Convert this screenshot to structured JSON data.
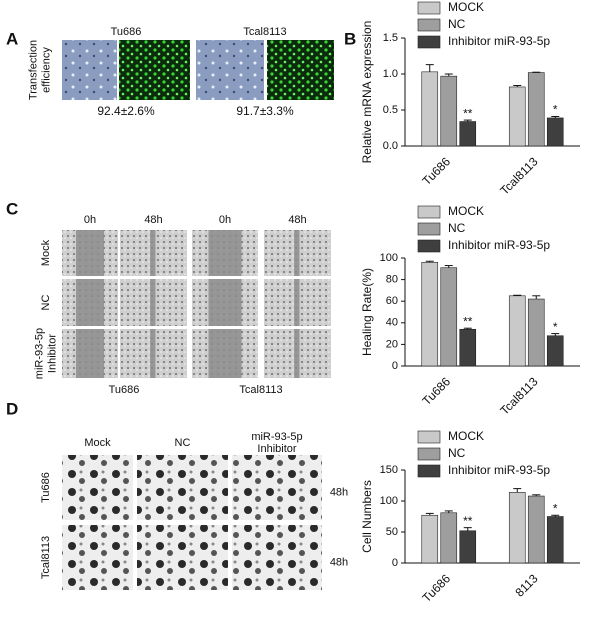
{
  "panel_labels": [
    "A",
    "B",
    "C",
    "D"
  ],
  "panel_a": {
    "row_label": [
      "Transfection",
      "efficiency"
    ],
    "cells": [
      "Tu686",
      "Tcal8113"
    ],
    "efficiencies": [
      "92.4±2.6%",
      "91.7±3.3%"
    ]
  },
  "panel_c": {
    "columns": [
      "0h",
      "48h",
      "0h",
      "48h"
    ],
    "rows": [
      [
        "Mock"
      ],
      [
        "NC"
      ],
      [
        "miR-93-5p",
        "Inhibitor"
      ]
    ],
    "cells": [
      "Tu686",
      "Tcal8113"
    ]
  },
  "panel_d": {
    "columns": [
      [
        "Mock"
      ],
      [
        "NC"
      ],
      [
        "miR-93-5p",
        "Inhibitor"
      ]
    ],
    "rows": [
      "Tu686",
      "Tcal8113"
    ],
    "times": [
      "48h",
      "48h"
    ]
  },
  "chart_data": [
    {
      "type": "bar",
      "y_label": "Relative mRNA expression",
      "categories": [
        "Tu686",
        "Tcal8113"
      ],
      "ylim": [
        0,
        1.5
      ],
      "yticks": [
        {
          "value": 0,
          "label": "0.0"
        },
        {
          "value": 0.5,
          "label": "0.5"
        },
        {
          "value": 1,
          "label": "1.0"
        },
        {
          "value": 1.5,
          "label": "1.5"
        }
      ],
      "series": [
        {
          "name": "MOCK",
          "color": "#c9c9c9",
          "values": [
            1.03,
            0.82
          ],
          "errors": [
            0.1,
            0.02
          ]
        },
        {
          "name": "NC",
          "color": "#9e9e9e",
          "values": [
            0.97,
            1.02
          ],
          "errors": [
            0.03,
            0.005
          ]
        },
        {
          "name": "Inhibitor miR-93-5p",
          "color": "#3f3f3f",
          "values": [
            0.34,
            0.39
          ],
          "errors": [
            0.02,
            0.02
          ],
          "significance": [
            "**",
            "*"
          ]
        }
      ]
    },
    {
      "type": "bar",
      "y_label": "Healing Rate(%)",
      "categories": [
        "Tu686",
        "Tcal8113"
      ],
      "ylim": [
        0,
        100
      ],
      "yticks": [
        0,
        20,
        40,
        60,
        80,
        100
      ],
      "series": [
        {
          "name": "MOCK",
          "color": "#c9c9c9",
          "values": [
            96,
            65
          ],
          "errors": [
            1,
            0.5
          ]
        },
        {
          "name": "NC",
          "color": "#9e9e9e",
          "values": [
            91,
            62
          ],
          "errors": [
            2,
            3
          ]
        },
        {
          "name": "Inhibitor miR-93-5p",
          "color": "#3f3f3f",
          "values": [
            34,
            28
          ],
          "errors": [
            1,
            2
          ],
          "significance": [
            "**",
            "*"
          ]
        }
      ]
    },
    {
      "type": "bar",
      "y_label": "Cell Numbers",
      "categories": [
        "Tu686",
        "8113"
      ],
      "ylim": [
        0,
        150
      ],
      "yticks": [
        0,
        50,
        100,
        150
      ],
      "series": [
        {
          "name": "MOCK",
          "color": "#c9c9c9",
          "values": [
            77,
            114
          ],
          "errors": [
            3,
            6
          ]
        },
        {
          "name": "NC",
          "color": "#9e9e9e",
          "values": [
            81,
            108
          ],
          "errors": [
            3,
            2
          ]
        },
        {
          "name": "Inhibitor miR-93-5p",
          "color": "#3f3f3f",
          "values": [
            52,
            75
          ],
          "errors": [
            5,
            2
          ],
          "significance": [
            "**",
            "*"
          ]
        }
      ]
    }
  ]
}
